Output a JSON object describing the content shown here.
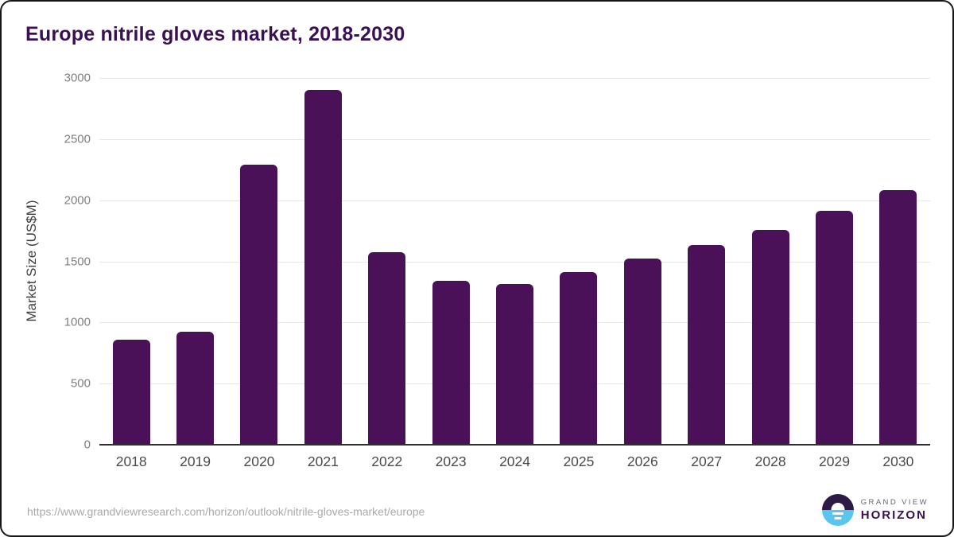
{
  "title": "Europe nitrile gloves market, 2018-2030",
  "chart_data": {
    "type": "bar",
    "title": "Europe nitrile gloves market, 2018-2030",
    "categories": [
      "2018",
      "2019",
      "2020",
      "2021",
      "2022",
      "2023",
      "2024",
      "2025",
      "2026",
      "2027",
      "2028",
      "2029",
      "2030"
    ],
    "values": [
      860,
      925,
      2290,
      2900,
      1575,
      1340,
      1315,
      1415,
      1520,
      1635,
      1760,
      1915,
      2085
    ],
    "xlabel": "",
    "ylabel": "Market Size (US$M)",
    "ylim": [
      0,
      3000
    ],
    "yticks": [
      0,
      500,
      1000,
      1500,
      2000,
      2500,
      3000
    ],
    "grid": "horizontal",
    "legend": "none",
    "bar_color": "#4B1158"
  },
  "colors": {
    "bar": "#4B1158",
    "title_text": "#3B1053",
    "gridline": "#E6E6E6",
    "axis_line": "#2F2F2F",
    "y_tick_label": "#7F7F7F",
    "x_tick_label": "#4A4A4A",
    "source_url_text": "#A9A9A9",
    "logo_blue": "#5AC6F0",
    "logo_dark_purple": "#2D1A45"
  },
  "footer": {
    "source_url": "https://www.grandviewresearch.com/horizon/outlook/nitrile-gloves-market/europe",
    "logo": {
      "line1": "GRAND VIEW",
      "line2": "HORIZON"
    }
  }
}
